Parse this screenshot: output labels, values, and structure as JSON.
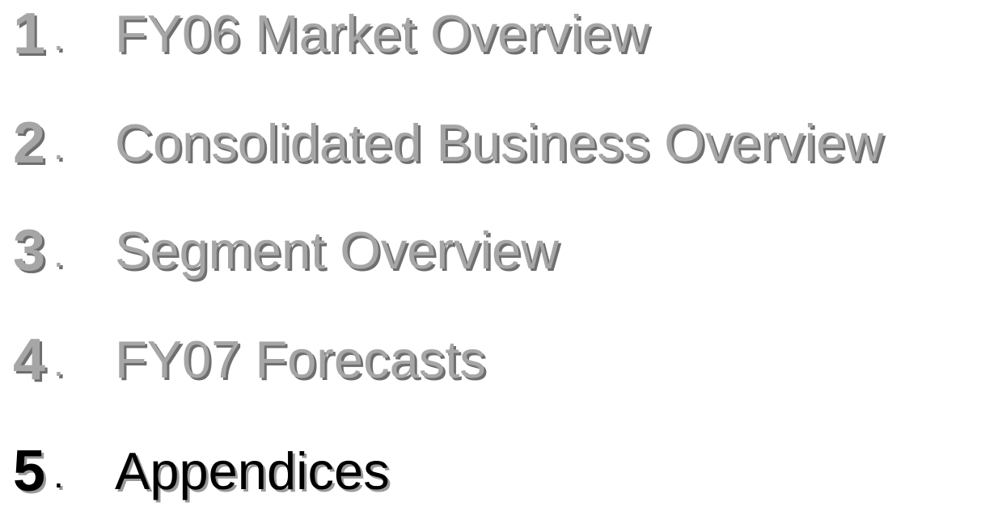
{
  "separator": ".",
  "current": 4,
  "items": [
    {
      "number": "1",
      "title": "FY06 Market Overview"
    },
    {
      "number": "2",
      "title": "Consolidated Business Overview"
    },
    {
      "number": "3",
      "title": "Segment Overview"
    },
    {
      "number": "4",
      "title": "FY07 Forecasts"
    },
    {
      "number": "5",
      "title": "Appendices"
    }
  ]
}
